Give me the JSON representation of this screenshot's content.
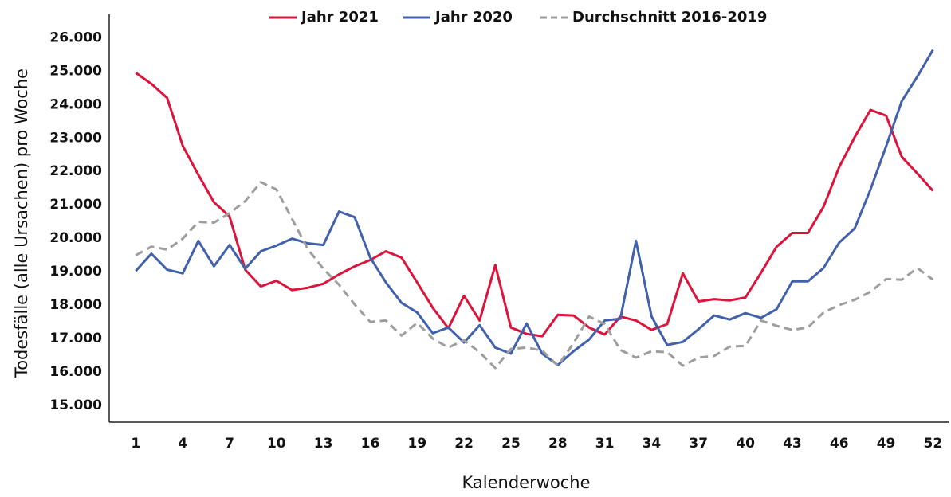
{
  "chart_data": {
    "type": "line",
    "x_label": "Kalenderwoche",
    "y_label": "Todesfälle (alle Ursachen) pro Woche",
    "x": [
      1,
      2,
      3,
      4,
      5,
      6,
      7,
      8,
      9,
      10,
      11,
      12,
      13,
      14,
      15,
      16,
      17,
      18,
      19,
      20,
      21,
      22,
      23,
      24,
      25,
      26,
      27,
      28,
      29,
      30,
      31,
      32,
      33,
      34,
      35,
      36,
      37,
      38,
      39,
      40,
      41,
      42,
      43,
      44,
      45,
      46,
      47,
      48,
      49,
      50,
      51,
      52
    ],
    "xlim": [
      -0.7,
      53
    ],
    "xticks": [
      1,
      4,
      7,
      10,
      13,
      16,
      19,
      22,
      25,
      28,
      31,
      34,
      37,
      40,
      43,
      46,
      49,
      52
    ],
    "ylim": [
      14500,
      26700
    ],
    "yticks": [
      {
        "value": 15000,
        "label": "15.000"
      },
      {
        "value": 16000,
        "label": "16.000"
      },
      {
        "value": 17000,
        "label": "17.000"
      },
      {
        "value": 18000,
        "label": "18.000"
      },
      {
        "value": 19000,
        "label": "19.000"
      },
      {
        "value": 20000,
        "label": "20.000"
      },
      {
        "value": 21000,
        "label": "21.000"
      },
      {
        "value": 22000,
        "label": "22.000"
      },
      {
        "value": 23000,
        "label": "23.000"
      },
      {
        "value": 24000,
        "label": "24.000"
      },
      {
        "value": 25000,
        "label": "25.000"
      },
      {
        "value": 26000,
        "label": "26.000"
      }
    ],
    "grid": false,
    "legend": "top",
    "series": [
      {
        "name": "Jahr 2021",
        "color": "#dc143c",
        "style": "solid",
        "values": [
          24950,
          24620,
          24200,
          22770,
          21900,
          21080,
          20650,
          19060,
          18560,
          18730,
          18450,
          18520,
          18640,
          18920,
          19160,
          19350,
          19610,
          19420,
          18680,
          17920,
          17310,
          18280,
          17540,
          19200,
          17330,
          17140,
          17070,
          17710,
          17690,
          17330,
          17120,
          17660,
          17540,
          17260,
          17430,
          18950,
          18110,
          18180,
          18140,
          18230,
          18970,
          19750,
          20160,
          20160,
          20940,
          22130,
          23030,
          23840,
          23670,
          22440,
          21940,
          21420
        ]
      },
      {
        "name": "Jahr 2020",
        "color": "#4161ad",
        "style": "solid",
        "values": [
          19020,
          19540,
          19060,
          18950,
          19920,
          19160,
          19800,
          19090,
          19610,
          19780,
          19990,
          19850,
          19800,
          20800,
          20630,
          19420,
          18680,
          18070,
          17780,
          17160,
          17330,
          16880,
          17400,
          16730,
          16550,
          17450,
          16550,
          16210,
          16620,
          16970,
          17540,
          17590,
          19920,
          17660,
          16810,
          16900,
          17280,
          17690,
          17570,
          17760,
          17620,
          17880,
          18710,
          18710,
          19110,
          19870,
          20300,
          21460,
          22750,
          24100,
          24840,
          25640
        ]
      },
      {
        "name": "Durchschnitt 2016-2019",
        "color": "#9e9e9e",
        "style": "dashed",
        "values": [
          19490,
          19750,
          19660,
          19990,
          20490,
          20470,
          20750,
          21110,
          21680,
          21460,
          20580,
          19680,
          19090,
          18610,
          18020,
          17500,
          17540,
          17090,
          17470,
          17000,
          16730,
          16950,
          16590,
          16120,
          16690,
          16730,
          16640,
          16190,
          16860,
          17660,
          17430,
          16660,
          16430,
          16620,
          16590,
          16190,
          16430,
          16480,
          16760,
          16780,
          17540,
          17380,
          17260,
          17330,
          17780,
          18000,
          18160,
          18400,
          18780,
          18760,
          19110,
          18760
        ]
      }
    ]
  }
}
